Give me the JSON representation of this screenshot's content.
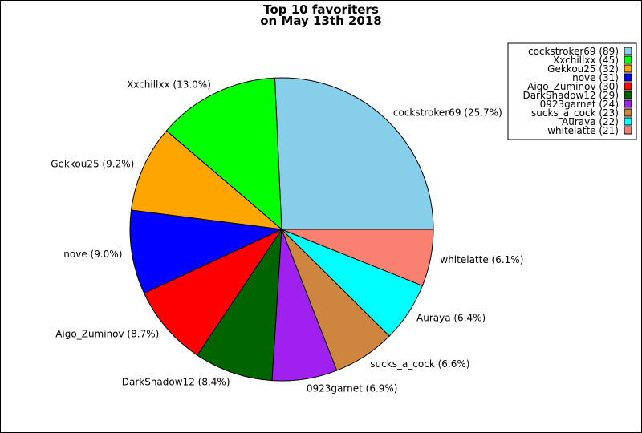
{
  "chart_data": {
    "type": "pie",
    "title": [
      "Top 10 favoriters",
      "on May 13th 2018"
    ],
    "legend_position": "top-right",
    "slices": [
      {
        "name": "cockstroker69",
        "value": 89,
        "percent": "25.7%",
        "color": "#87CEEB"
      },
      {
        "name": "Xxchillxx",
        "value": 45,
        "percent": "13.0%",
        "color": "#00FF00"
      },
      {
        "name": "Gekkou25",
        "value": 32,
        "percent": "9.2%",
        "color": "#FFA500"
      },
      {
        "name": "nove",
        "value": 31,
        "percent": "9.0%",
        "color": "#0000FF"
      },
      {
        "name": "Aigo_Zuminov",
        "value": 30,
        "percent": "8.7%",
        "color": "#FF0000"
      },
      {
        "name": "DarkShadow12",
        "value": 29,
        "percent": "8.4%",
        "color": "#006400"
      },
      {
        "name": "0923garnet",
        "value": 24,
        "percent": "6.9%",
        "color": "#A020F0"
      },
      {
        "name": "sucks_a_cock",
        "value": 23,
        "percent": "6.6%",
        "color": "#CD853F"
      },
      {
        "name": "Auraya",
        "value": 22,
        "percent": "6.4%",
        "color": "#00FFFF"
      },
      {
        "name": "whitelatte",
        "value": 21,
        "percent": "6.1%",
        "color": "#FA8072"
      }
    ]
  }
}
